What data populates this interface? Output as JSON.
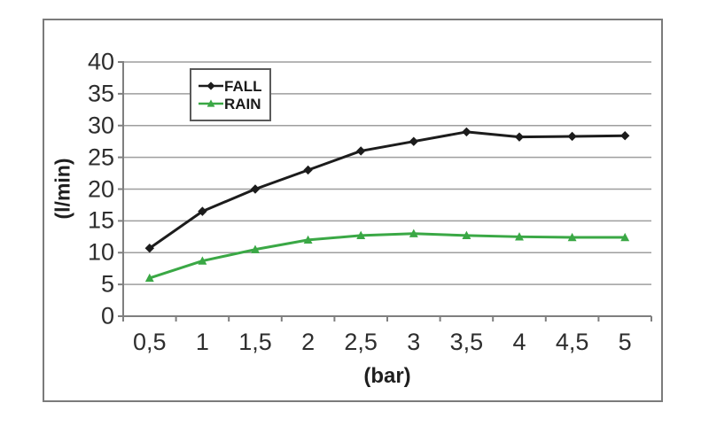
{
  "chart_data": {
    "type": "line",
    "x": [
      0.5,
      1,
      1.5,
      2,
      2.5,
      3,
      3.5,
      4,
      4.5,
      5
    ],
    "x_tick_labels": [
      "0,5",
      "1",
      "1,5",
      "2",
      "2,5",
      "3",
      "3,5",
      "4",
      "4,5",
      "5"
    ],
    "series": [
      {
        "name": "FALL",
        "color": "#1c1c1c",
        "marker": "diamond",
        "values": [
          10.7,
          16.5,
          20,
          23,
          26,
          27.5,
          29,
          28.2,
          28.3,
          28.4
        ]
      },
      {
        "name": "RAIN",
        "color": "#3aa845",
        "marker": "triangle",
        "values": [
          6,
          8.7,
          10.5,
          12,
          12.7,
          13,
          12.7,
          12.5,
          12.4,
          12.4
        ]
      }
    ],
    "title": "",
    "xlabel": "(bar)",
    "ylabel": "(l/min)",
    "ylim": [
      0,
      40
    ],
    "y_tick_step": 5,
    "y_tick_labels": [
      "0",
      "5",
      "10",
      "15",
      "20",
      "25",
      "30",
      "35",
      "40"
    ],
    "grid": true,
    "legend_position": "inside-top-left"
  },
  "theme": {
    "background": "#ffffff",
    "frame_border": "#7b7b7b",
    "gridline": "#9e9e9e",
    "axis": "#7f7f7f",
    "tick_text": "#2e2e2e",
    "legend_border": "#5a5a5a"
  }
}
